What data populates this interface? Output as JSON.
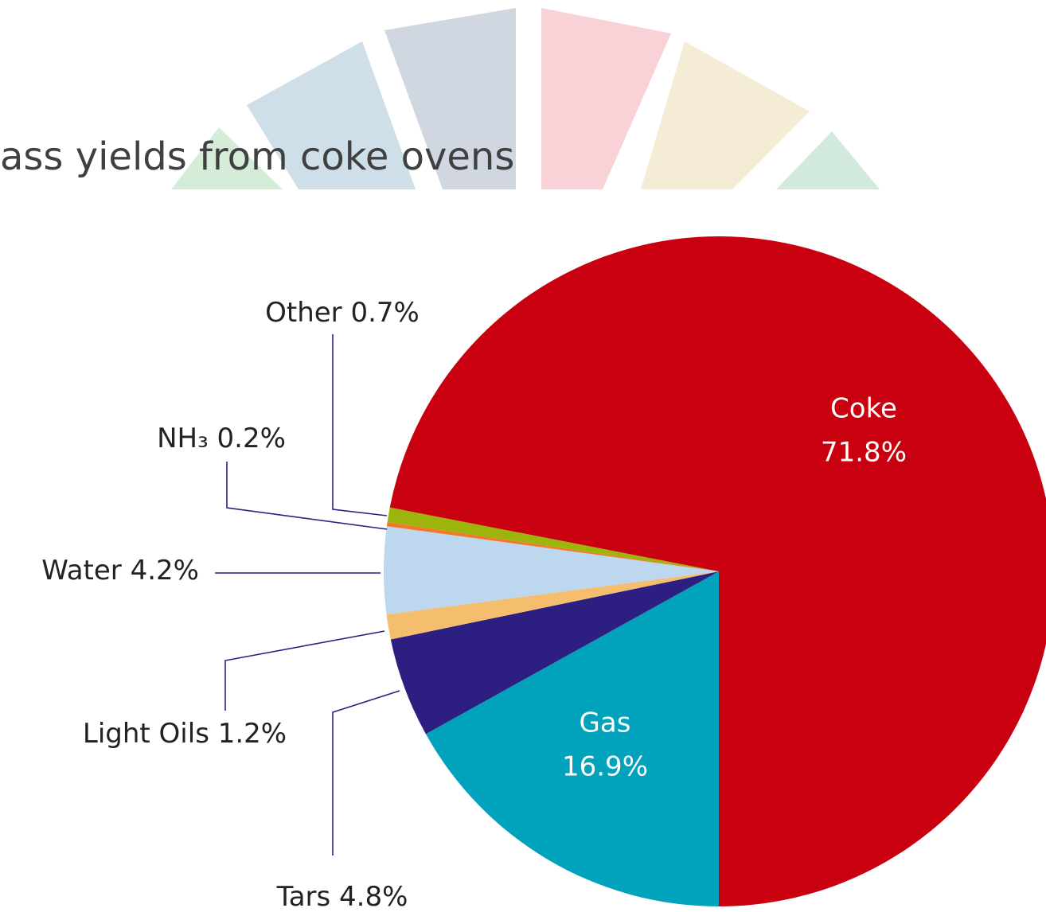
{
  "chart_data": {
    "type": "pie",
    "title": "ass yields from coke ovens",
    "categories": [
      "Gas",
      "Tars",
      "Light Oils",
      "Water",
      "NH₃",
      "Other",
      "Coke"
    ],
    "values": [
      16.9,
      4.8,
      1.2,
      4.2,
      0.2,
      0.7,
      71.8
    ],
    "value_labels": [
      "16.9%",
      "4.8%",
      "1.2%",
      "4.2%",
      "0.2%",
      "0.7%",
      "71.8%"
    ],
    "colors": [
      "#00a3bb",
      "#2d1e82",
      "#f5bd6e",
      "#bdd7ee",
      "#f07a2a",
      "#9cb40c",
      "#c8000f"
    ]
  }
}
